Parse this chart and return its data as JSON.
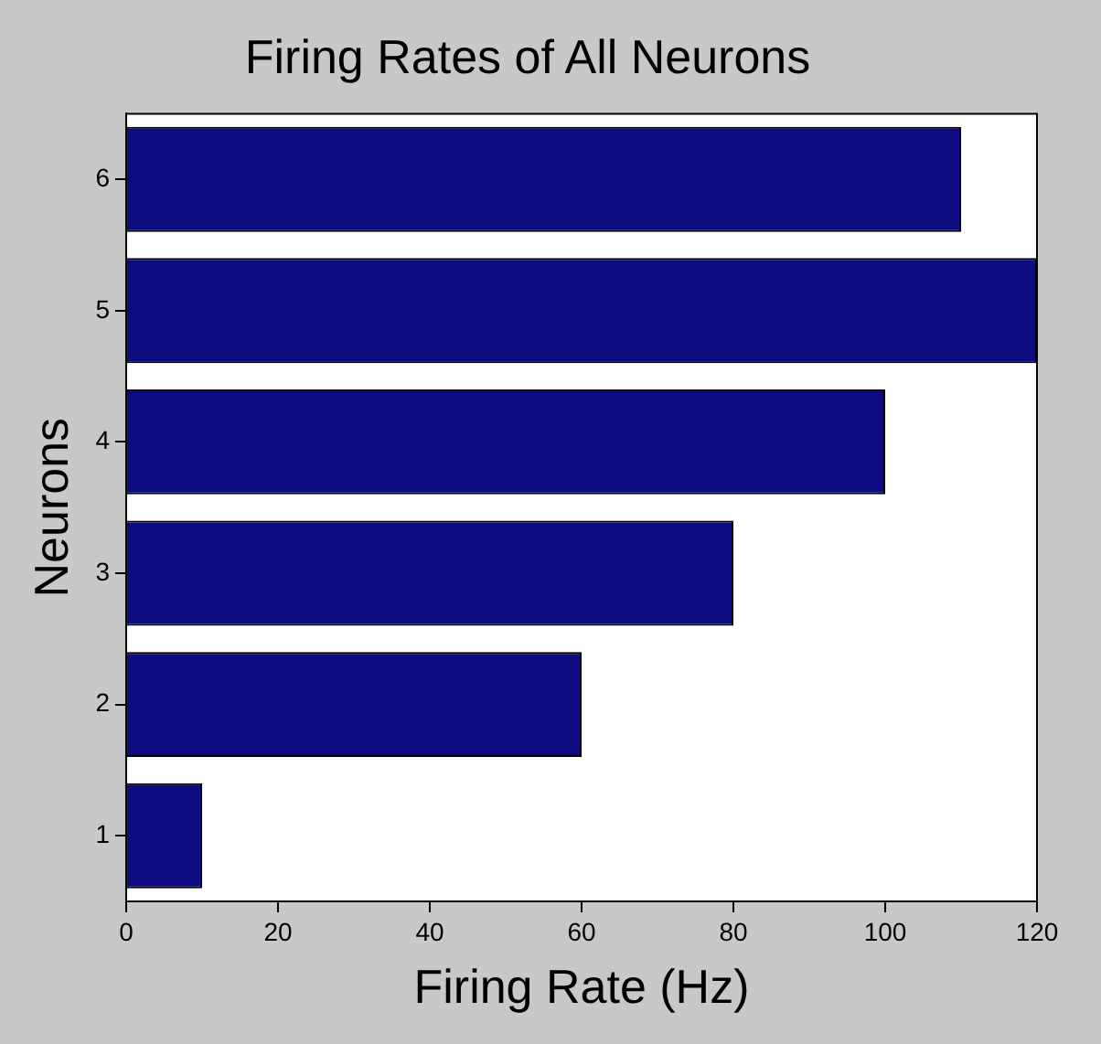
{
  "chart_data": {
    "type": "bar",
    "orientation": "horizontal",
    "title": "Firing Rates of All Neurons",
    "xlabel": "Firing Rate (Hz)",
    "ylabel": "Neurons",
    "categories": [
      "6",
      "5",
      "4",
      "3",
      "2",
      "1"
    ],
    "values": [
      110,
      120,
      100,
      80,
      60,
      10
    ],
    "color": "#0c0c80",
    "xlim": [
      0,
      120
    ],
    "xticks": [
      0,
      20,
      40,
      60,
      80,
      100,
      120
    ],
    "grid": false,
    "legend": false
  }
}
